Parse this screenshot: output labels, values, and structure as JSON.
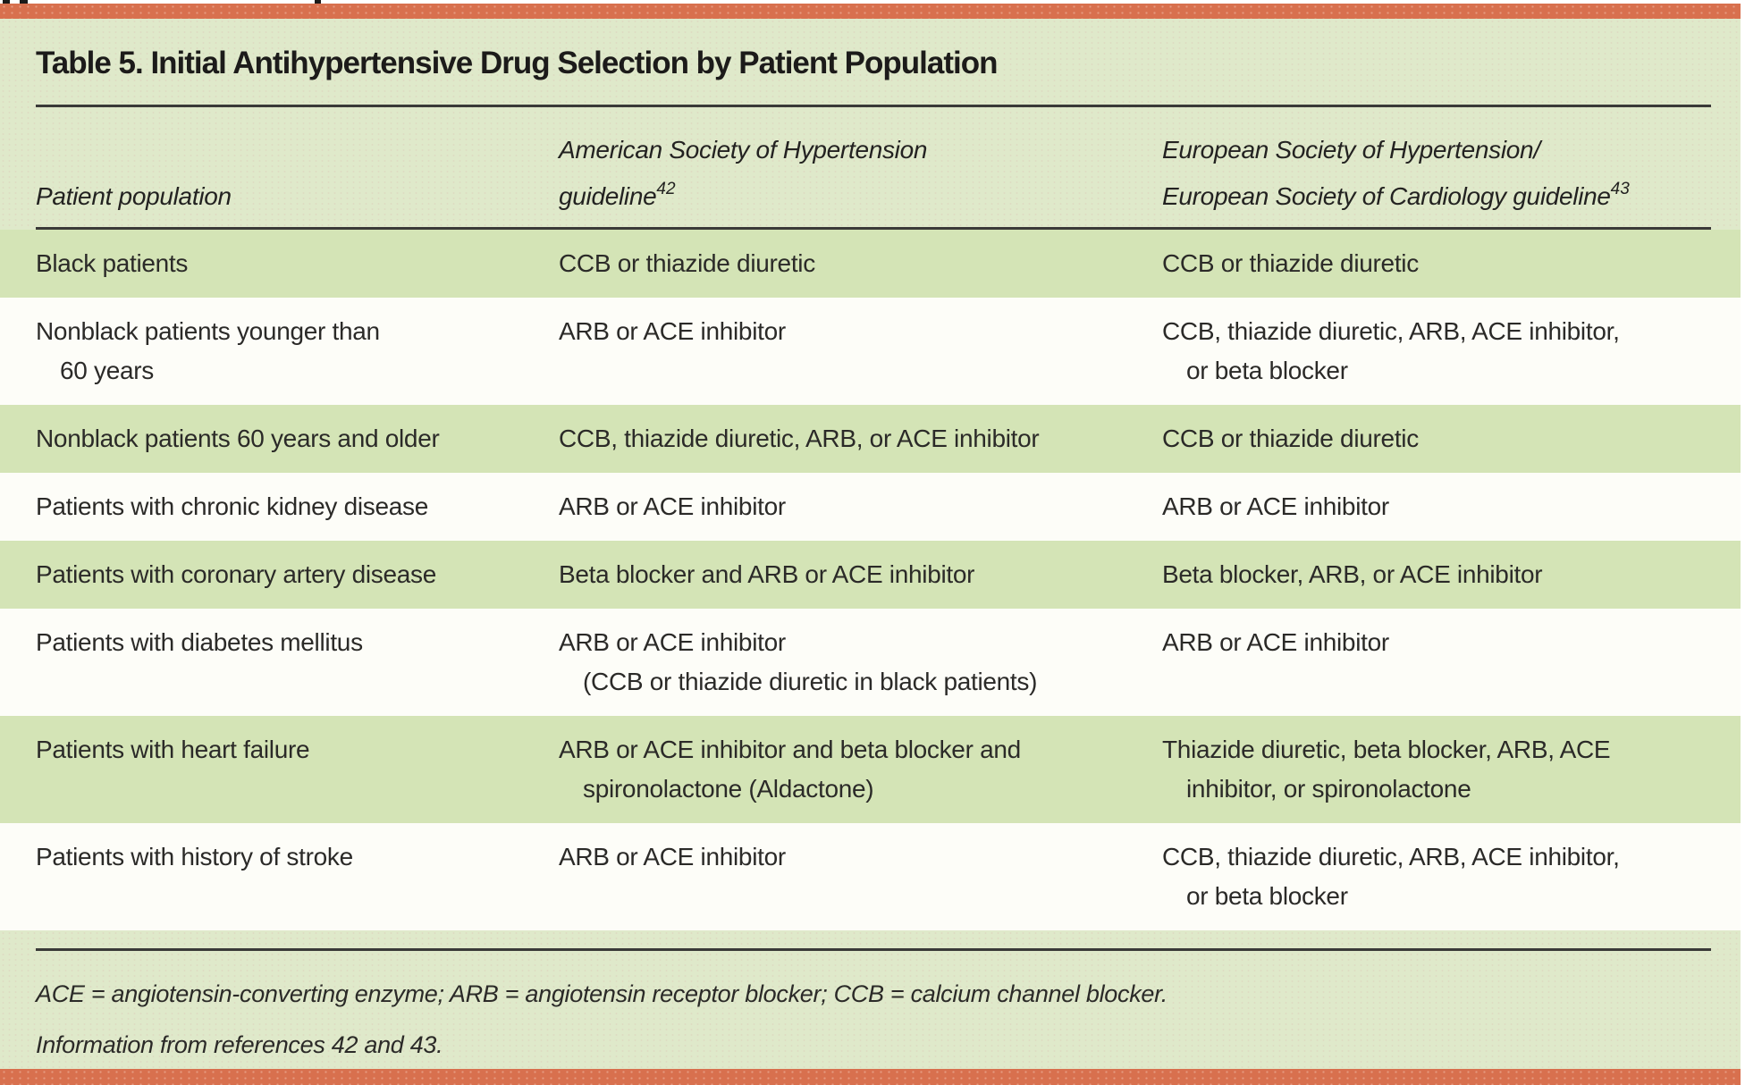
{
  "page": {
    "accent_color": "#d8704e",
    "panel_color": "#dfe9ca",
    "stripe_color": "#d4e4b6"
  },
  "table": {
    "title": "Table 5. Initial Antihypertensive Drug Selection by Patient Population",
    "columns": [
      {
        "label": "Patient population",
        "sup": ""
      },
      {
        "label": "American Society of Hypertension\nguideline",
        "sup": "42"
      },
      {
        "label": "European Society of Hypertension/\nEuropean Society of Cardiology guideline",
        "sup": "43"
      }
    ],
    "rows": [
      {
        "population": "Black patients",
        "ash": "CCB or thiazide diuretic",
        "esh": "CCB or thiazide diuretic"
      },
      {
        "population": "Nonblack patients younger than\n60 years",
        "ash": "ARB or ACE inhibitor",
        "esh": "CCB, thiazide diuretic, ARB, ACE inhibitor,\nor beta blocker"
      },
      {
        "population": "Nonblack patients 60 years and older",
        "ash": "CCB, thiazide diuretic, ARB, or ACE inhibitor",
        "esh": "CCB or thiazide diuretic"
      },
      {
        "population": "Patients with chronic kidney disease",
        "ash": "ARB or ACE inhibitor",
        "esh": "ARB or ACE inhibitor"
      },
      {
        "population": "Patients with coronary artery disease",
        "ash": "Beta blocker and ARB or ACE inhibitor",
        "esh": "Beta blocker, ARB, or ACE inhibitor"
      },
      {
        "population": "Patients with diabetes mellitus",
        "ash": "ARB or ACE inhibitor\n(CCB or thiazide diuretic in black patients)",
        "esh": "ARB or ACE inhibitor"
      },
      {
        "population": "Patients with heart failure",
        "ash": "ARB or ACE inhibitor and beta blocker and\nspironolactone (Aldactone)",
        "esh": "Thiazide diuretic, beta blocker, ARB, ACE\ninhibitor, or spironolactone"
      },
      {
        "population": "Patients with history of stroke",
        "ash": "ARB or ACE inhibitor",
        "esh": "CCB, thiazide diuretic, ARB, ACE inhibitor,\nor beta blocker"
      }
    ],
    "footnotes": [
      "ACE = angiotensin-converting enzyme; ARB = angiotensin receptor blocker; CCB = calcium channel blocker.",
      "Information from references 42 and 43."
    ]
  }
}
